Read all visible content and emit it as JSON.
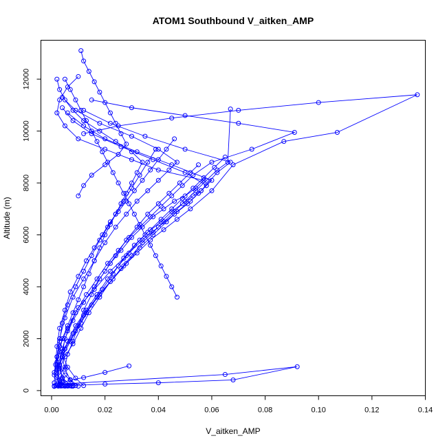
{
  "chart_data": {
    "type": "line",
    "title": "ATOM1 Southbound V_aitken_AMP",
    "xlabel": "V_aitken_AMP",
    "ylabel": "Altitude (m)",
    "xlim": [
      -0.004,
      0.14
    ],
    "ylim": [
      -200,
      13500
    ],
    "x_ticks": [
      0.0,
      0.02,
      0.04,
      0.06,
      0.08,
      0.1,
      0.12,
      0.14
    ],
    "x_tick_labels": [
      "0.00",
      "0.02",
      "0.04",
      "0.06",
      "0.08",
      "0.10",
      "0.12",
      "0.14"
    ],
    "y_ticks": [
      0,
      2000,
      4000,
      6000,
      8000,
      10000,
      12000
    ],
    "y_tick_labels": [
      "0",
      "2000",
      "4000",
      "6000",
      "8000",
      "10000",
      "12000"
    ],
    "grid": false,
    "legend": "none",
    "series_color": "#0000ff",
    "marker": "open-circle",
    "series": [
      {
        "x": [
          0.004,
          0.002,
          0.005,
          0.006,
          0.008,
          0.01,
          0.012,
          0.015,
          0.018,
          0.022,
          0.026,
          0.03,
          0.034,
          0.038,
          0.042,
          0.046,
          0.05,
          0.054,
          0.057,
          0.04,
          0.03,
          0.02,
          0.01,
          0.005,
          0.002,
          0.003,
          0.006,
          0.01
        ],
        "y": [
          200,
          500,
          900,
          1400,
          1900,
          2500,
          3100,
          3700,
          4300,
          4900,
          5400,
          5900,
          6300,
          6700,
          7000,
          7300,
          7500,
          7800,
          8100,
          8500,
          8900,
          9300,
          9700,
          10200,
          10700,
          11200,
          11700,
          12100
        ]
      },
      {
        "x": [
          0.006,
          0.003,
          0.002,
          0.004,
          0.007,
          0.011,
          0.015,
          0.019,
          0.023,
          0.027,
          0.031,
          0.036,
          0.041,
          0.045,
          0.049,
          0.053,
          0.056,
          0.058,
          0.05,
          0.038,
          0.026,
          0.015,
          0.008,
          0.004
        ],
        "y": [
          180,
          400,
          800,
          1300,
          1900,
          2600,
          3300,
          3900,
          4500,
          5100,
          5600,
          6100,
          6500,
          6900,
          7200,
          7500,
          7700,
          7900,
          8400,
          8900,
          9400,
          9900,
          10400,
          10900
        ]
      },
      {
        "x": [
          0.008,
          0.004,
          0.003,
          0.005,
          0.009,
          0.013,
          0.018,
          0.023,
          0.028,
          0.033,
          0.038,
          0.043,
          0.047,
          0.052,
          0.055,
          0.058,
          0.06,
          0.045,
          0.032,
          0.02,
          0.012,
          0.006
        ],
        "y": [
          170,
          450,
          950,
          1600,
          2300,
          3000,
          3700,
          4300,
          4900,
          5500,
          6000,
          6500,
          6900,
          7300,
          7600,
          7900,
          8100,
          8700,
          9200,
          9700,
          10200,
          10700
        ]
      },
      {
        "x": [
          0.009,
          0.005,
          0.002,
          0.003,
          0.006,
          0.01,
          0.016,
          0.022,
          0.028,
          0.034,
          0.04,
          0.046,
          0.051,
          0.056,
          0.062,
          0.067,
          0.05,
          0.035,
          0.022,
          0.012
        ],
        "y": [
          190,
          600,
          1100,
          1700,
          2400,
          3200,
          3900,
          4600,
          5200,
          5800,
          6300,
          6800,
          7200,
          7700,
          8400,
          8800,
          9300,
          9800,
          10300,
          10800
        ]
      },
      {
        "x": [
          0.003,
          0.001,
          0.002,
          0.003,
          0.005,
          0.008,
          0.012,
          0.016,
          0.02,
          0.024,
          0.028,
          0.032,
          0.036,
          0.04,
          0.044,
          0.047,
          0.04,
          0.03,
          0.018,
          0.009,
          0.004
        ],
        "y": [
          220,
          700,
          1300,
          2000,
          2800,
          3600,
          4300,
          5000,
          5700,
          6300,
          6800,
          7300,
          7700,
          8100,
          8500,
          8800,
          9300,
          9800,
          10300,
          10800,
          11300
        ]
      },
      {
        "x": [
          0.007,
          0.004,
          0.003,
          0.004,
          0.006,
          0.009,
          0.013,
          0.017,
          0.021,
          0.025,
          0.029,
          0.033,
          0.037,
          0.041,
          0.045,
          0.049,
          0.053,
          0.06,
          0.075,
          0.091,
          0.07,
          0.05,
          0.03,
          0.015
        ],
        "y": [
          200,
          500,
          1000,
          1600,
          2300,
          3000,
          3700,
          4300,
          4900,
          5400,
          5900,
          6300,
          6700,
          7100,
          7500,
          7900,
          8300,
          8800,
          9300,
          9950,
          10300,
          10600,
          10900,
          11200
        ]
      },
      {
        "x": [
          0.005,
          0.003,
          0.002,
          0.004,
          0.008,
          0.012,
          0.017,
          0.022,
          0.027,
          0.032,
          0.037,
          0.042,
          0.047,
          0.052,
          0.06,
          0.068,
          0.087,
          0.107,
          0.137,
          0.1,
          0.07,
          0.045,
          0.025,
          0.012
        ],
        "y": [
          180,
          400,
          900,
          1500,
          2200,
          2900,
          3600,
          4200,
          4800,
          5300,
          5800,
          6200,
          6600,
          7000,
          7700,
          8700,
          9600,
          9950,
          11400,
          11100,
          10800,
          10500,
          10200,
          9900
        ]
      },
      {
        "x": [
          0.002,
          0.001,
          0.002,
          0.003,
          0.004,
          0.006,
          0.008,
          0.01,
          0.012,
          0.014,
          0.016,
          0.018,
          0.02,
          0.022,
          0.024,
          0.026,
          0.028,
          0.03,
          0.032,
          0.034,
          0.03,
          0.024,
          0.018,
          0.012,
          0.008,
          0.005,
          0.003,
          0.002
        ],
        "y": [
          250,
          600,
          1000,
          1500,
          2000,
          2500,
          3000,
          3500,
          4000,
          4500,
          5000,
          5500,
          6000,
          6400,
          6800,
          7200,
          7600,
          8000,
          8400,
          8800,
          9200,
          9600,
          10000,
          10400,
          10800,
          11200,
          11600,
          12000
        ]
      },
      {
        "x": [
          0.006,
          0.004,
          0.003,
          0.005,
          0.008,
          0.011,
          0.014,
          0.018,
          0.022,
          0.026,
          0.03,
          0.034,
          0.038,
          0.042,
          0.046,
          0.05,
          0.054,
          0.058,
          0.062,
          0.066,
          0.067
        ],
        "y": [
          200,
          450,
          850,
          1300,
          1800,
          2400,
          3000,
          3600,
          4200,
          4700,
          5200,
          5700,
          6100,
          6500,
          6900,
          7300,
          7700,
          8100,
          8500,
          8800,
          10850
        ]
      },
      {
        "x": [
          0.01,
          0.007,
          0.005,
          0.004,
          0.006,
          0.009,
          0.013,
          0.017,
          0.021,
          0.025,
          0.029,
          0.033,
          0.037,
          0.041,
          0.045,
          0.049,
          0.053,
          0.057,
          0.061,
          0.065
        ],
        "y": [
          170,
          420,
          820,
          1300,
          1900,
          2500,
          3100,
          3700,
          4300,
          4800,
          5300,
          5800,
          6200,
          6600,
          7000,
          7400,
          7800,
          8200,
          8600,
          9000
        ]
      },
      {
        "x": [
          0.001,
          0.0015,
          0.002,
          0.003,
          0.005,
          0.007,
          0.01,
          0.013,
          0.016,
          0.019,
          0.022,
          0.025,
          0.028,
          0.031,
          0.034,
          0.037,
          0.04,
          0.043,
          0.046
        ],
        "y": [
          300,
          1000,
          1700,
          2400,
          3100,
          3800,
          4400,
          5000,
          5500,
          6000,
          6500,
          6900,
          7300,
          7700,
          8100,
          8500,
          8900,
          9300,
          9700
        ]
      },
      {
        "x": [
          0.012,
          0.009,
          0.006,
          0.004,
          0.005,
          0.008,
          0.012,
          0.016,
          0.02,
          0.024,
          0.028,
          0.032,
          0.036,
          0.04,
          0.044,
          0.048,
          0.052,
          0.055
        ],
        "y": [
          190,
          480,
          900,
          1400,
          2000,
          2700,
          3400,
          4000,
          4600,
          5200,
          5800,
          6300,
          6800,
          7200,
          7600,
          8000,
          8400,
          8700
        ]
      },
      {
        "x": [
          0.003,
          0.002,
          0.002,
          0.003,
          0.004,
          0.006,
          0.009,
          0.012,
          0.015,
          0.018,
          0.021,
          0.024,
          0.027,
          0.03,
          0.033,
          0.036,
          0.039
        ],
        "y": [
          200,
          700,
          1300,
          1900,
          2600,
          3300,
          4000,
          4600,
          5200,
          5800,
          6300,
          6800,
          7300,
          7800,
          8300,
          8800,
          9300
        ]
      },
      {
        "x": [
          0.011,
          0.012,
          0.014,
          0.016,
          0.018,
          0.02,
          0.022,
          0.024,
          0.026,
          0.028,
          0.025,
          0.02,
          0.015,
          0.012,
          0.01
        ],
        "y": [
          13100,
          12700,
          12300,
          11900,
          11500,
          11100,
          10700,
          10300,
          9900,
          9500,
          9100,
          8700,
          8300,
          7900,
          7500
        ]
      },
      {
        "x": [
          0.029,
          0.02,
          0.012,
          0.007,
          0.004,
          0.003,
          0.065,
          0.092,
          0.068,
          0.04,
          0.02,
          0.008,
          0.004
        ],
        "y": [
          950,
          700,
          500,
          400,
          300,
          250,
          620,
          920,
          410,
          300,
          250,
          200,
          180
        ]
      },
      {
        "x": [
          0.005,
          0.007,
          0.009,
          0.011,
          0.013,
          0.015,
          0.017,
          0.019,
          0.021,
          0.023,
          0.025,
          0.027,
          0.029,
          0.031,
          0.033,
          0.035,
          0.037,
          0.039,
          0.041,
          0.043,
          0.045,
          0.047
        ],
        "y": [
          12000,
          11600,
          11200,
          10800,
          10400,
          10000,
          9600,
          9200,
          8800,
          8400,
          8000,
          7600,
          7200,
          6800,
          6400,
          6000,
          5600,
          5200,
          4800,
          4400,
          4000,
          3600
        ]
      },
      {
        "x": [
          0.001,
          0.001,
          0.0015,
          0.002,
          0.0025,
          0.003,
          0.0035,
          0.004,
          0.0045,
          0.005,
          0.0055,
          0.006,
          0.0065,
          0.007,
          0.0075
        ],
        "y": [
          160,
          180,
          200,
          190,
          170,
          185,
          175,
          190,
          180,
          170,
          185,
          175,
          180,
          190,
          170
        ]
      }
    ]
  }
}
